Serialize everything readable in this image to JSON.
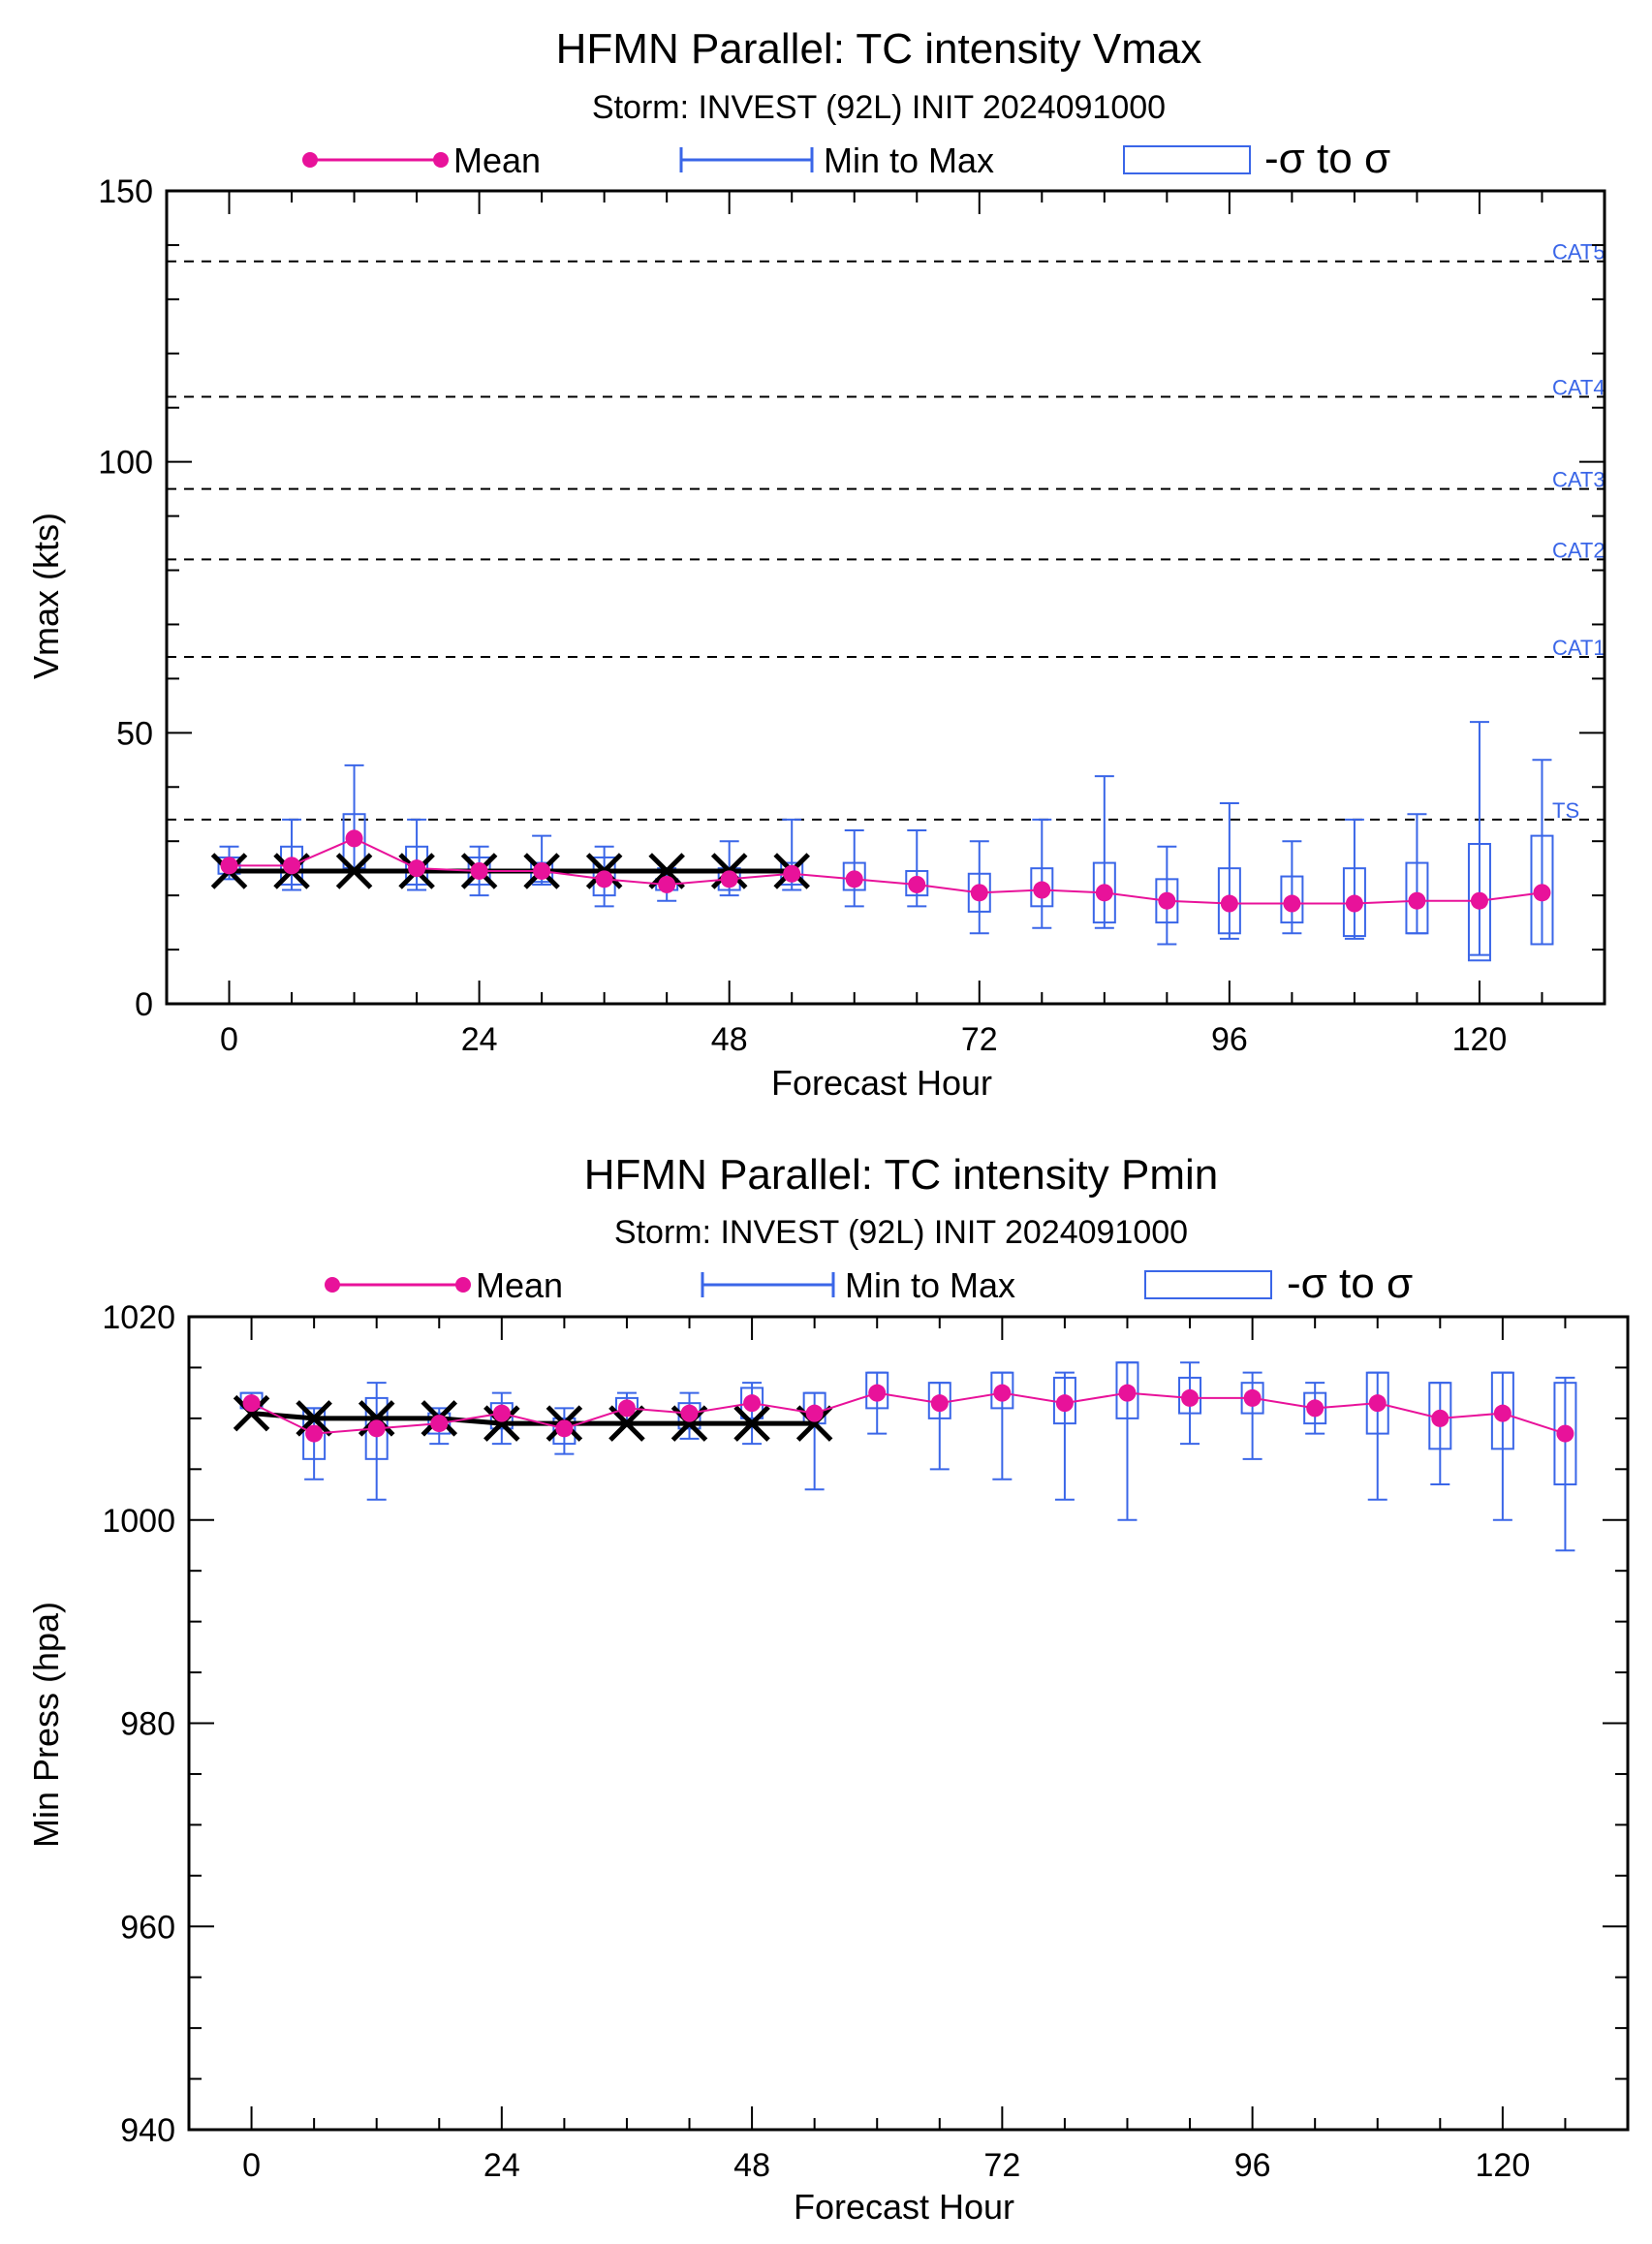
{
  "colors": {
    "mean": "#e8129a",
    "range": "#3a66e8",
    "obs": "#000000",
    "ref": "#000000"
  },
  "chart_data": [
    {
      "type": "box",
      "title": "HFMN Parallel: TC intensity Vmax",
      "subtitle": "Storm: INVEST (92L) INIT 2024091000",
      "legend": [
        "Mean",
        "Min to Max",
        "-σ to σ"
      ],
      "legend_position": "top",
      "xlabel": "Forecast Hour",
      "ylabel": "Vmax (kts)",
      "xlim": [
        -6,
        132
      ],
      "ylim": [
        0,
        150
      ],
      "xticks": [
        0,
        24,
        48,
        72,
        96,
        120
      ],
      "yticks": [
        0,
        50,
        100,
        150
      ],
      "reference_lines": [
        {
          "label": "TS",
          "value": 34
        },
        {
          "label": "CAT1",
          "value": 64
        },
        {
          "label": "CAT2",
          "value": 82
        },
        {
          "label": "CAT3",
          "value": 95
        },
        {
          "label": "CAT4",
          "value": 112
        },
        {
          "label": "CAT5",
          "value": 137
        }
      ],
      "x": [
        0,
        6,
        12,
        18,
        24,
        30,
        36,
        42,
        48,
        54,
        60,
        66,
        72,
        78,
        84,
        90,
        96,
        102,
        108,
        114,
        120,
        126
      ],
      "mean": [
        25.5,
        25.5,
        30.5,
        25,
        24.5,
        24.5,
        23,
        22,
        23,
        24,
        23,
        22,
        20.5,
        21,
        20.5,
        19,
        18.5,
        18.5,
        18.5,
        19,
        19,
        20.5
      ],
      "min": [
        23,
        21,
        25,
        21,
        20,
        22,
        18,
        19,
        20,
        21,
        18,
        18,
        13,
        14,
        14,
        11,
        12,
        13,
        12,
        13,
        9,
        11
      ],
      "max": [
        29,
        34,
        44,
        34,
        29,
        31,
        29,
        25,
        30,
        34,
        32,
        32,
        30,
        34,
        42,
        29,
        37,
        30,
        34,
        35,
        52,
        45
      ],
      "sigma_low": [
        24,
        22,
        25,
        22,
        22,
        22.5,
        20,
        21,
        21,
        22,
        21,
        20,
        17,
        18,
        15,
        15,
        13,
        15,
        12.5,
        13,
        8,
        11
      ],
      "sigma_high": [
        27,
        29,
        35,
        29,
        27,
        26,
        27,
        23,
        25,
        26,
        26,
        24.5,
        24,
        25,
        26,
        23,
        25,
        23.5,
        25,
        26,
        29.5,
        31
      ],
      "observed_x": [
        0,
        6,
        12,
        18,
        24,
        30,
        36,
        42,
        48,
        54
      ],
      "observed": [
        24.5,
        24.5,
        24.5,
        24.5,
        24.5,
        24.5,
        24.5,
        24.5,
        24.5,
        24.5
      ]
    },
    {
      "type": "box",
      "title": "HFMN Parallel: TC intensity Pmin",
      "subtitle": "Storm: INVEST (92L) INIT 2024091000",
      "legend": [
        "Mean",
        "Min to Max",
        "-σ to σ"
      ],
      "legend_position": "top",
      "xlabel": "Forecast Hour",
      "ylabel": "Min Press (hpa)",
      "xlim": [
        -6,
        132
      ],
      "ylim": [
        940,
        1020
      ],
      "xticks": [
        0,
        24,
        48,
        72,
        96,
        120
      ],
      "yticks": [
        940,
        960,
        980,
        1000,
        1020
      ],
      "reference_lines": [],
      "x": [
        0,
        6,
        12,
        18,
        24,
        30,
        36,
        42,
        48,
        54,
        60,
        66,
        72,
        78,
        84,
        90,
        96,
        102,
        108,
        114,
        120,
        126
      ],
      "mean": [
        1011.5,
        1008.5,
        1009,
        1009.5,
        1010.5,
        1009,
        1011,
        1010.5,
        1011.5,
        1010.5,
        1012.5,
        1011.5,
        1012.5,
        1011.5,
        1012.5,
        1012,
        1012,
        1011,
        1011.5,
        1010,
        1010.5,
        1008.5
      ],
      "min": [
        1011,
        1004,
        1002,
        1007.5,
        1007.5,
        1006.5,
        1009.5,
        1008,
        1007.5,
        1003,
        1008.5,
        1005,
        1004,
        1002,
        1000,
        1007.5,
        1006,
        1008.5,
        1002,
        1003.5,
        1000,
        997
      ],
      "max": [
        1012.5,
        1011,
        1013.5,
        1011,
        1012.5,
        1011,
        1012.5,
        1012.5,
        1013.5,
        1012.5,
        1014.5,
        1013.5,
        1014.5,
        1014.5,
        1015.5,
        1015.5,
        1014.5,
        1013.5,
        1014.5,
        1013.5,
        1014.5,
        1014
      ],
      "sigma_low": [
        1011,
        1006,
        1006,
        1008.5,
        1009,
        1007.5,
        1010.5,
        1009,
        1010,
        1009.5,
        1011,
        1010,
        1011,
        1009.5,
        1010,
        1010.5,
        1010.5,
        1009.5,
        1008.5,
        1007,
        1007,
        1003.5
      ],
      "sigma_high": [
        1012.5,
        1011,
        1012,
        1010.5,
        1011.5,
        1010,
        1012,
        1011.5,
        1013,
        1012.5,
        1014.5,
        1013.5,
        1014.5,
        1014,
        1015.5,
        1014,
        1013.5,
        1012.5,
        1014.5,
        1013.5,
        1014.5,
        1013.5
      ],
      "observed_x": [
        0,
        6,
        12,
        18,
        24,
        30,
        36,
        42,
        48,
        54
      ],
      "observed": [
        1010.5,
        1010,
        1010,
        1010,
        1009.5,
        1009.5,
        1009.5,
        1009.5,
        1009.5,
        1009.5
      ]
    }
  ]
}
